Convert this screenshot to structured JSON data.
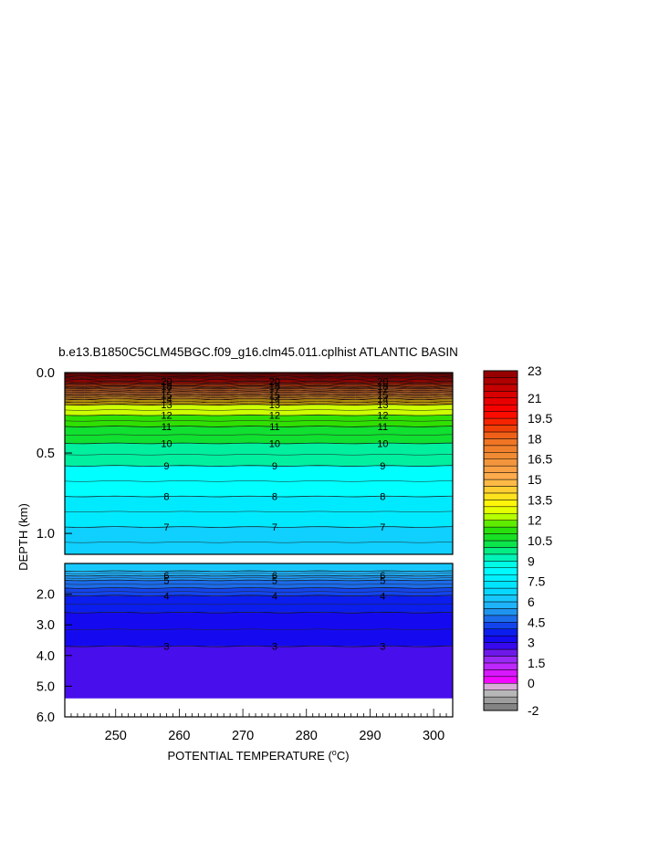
{
  "chart_data": {
    "type": "heatmap",
    "title": "b.e13.B1850C5CLM45BGC.f09_g16.clm45.011.cplhist ATLANTIC BASIN",
    "xlabel_prefix": "POTENTIAL TEMPERATURE (",
    "xlabel_unit_sup": "o",
    "xlabel_suffix": "C)",
    "ylabel": "DEPTH (km)",
    "xlim": [
      242,
      303
    ],
    "x_ticks": [
      250,
      260,
      270,
      280,
      290,
      300
    ],
    "upper_panel": {
      "ylim": [
        0.0,
        1.13
      ],
      "y_ticks": [
        "0.0",
        "0.5",
        "1.0"
      ],
      "y_tick_values": [
        0.0,
        0.5,
        1.0
      ],
      "isotherm_depths": [
        {
          "t": 23,
          "d": 0.01
        },
        {
          "t": 22,
          "d": 0.025
        },
        {
          "t": 21,
          "d": 0.04
        },
        {
          "t": 20,
          "d": 0.055
        },
        {
          "t": 19,
          "d": 0.07
        },
        {
          "t": 18,
          "d": 0.085
        },
        {
          "t": 17,
          "d": 0.1
        },
        {
          "t": 16,
          "d": 0.12
        },
        {
          "t": 15,
          "d": 0.14
        },
        {
          "t": 14,
          "d": 0.165
        },
        {
          "t": 13,
          "d": 0.2
        },
        {
          "t": 12,
          "d": 0.265
        },
        {
          "t": 11,
          "d": 0.335
        },
        {
          "t": 10,
          "d": 0.44
        },
        {
          "t": 9,
          "d": 0.58
        },
        {
          "t": 8,
          "d": 0.77
        },
        {
          "t": 7,
          "d": 0.96
        },
        {
          "t": 6,
          "d": 1.15
        }
      ],
      "contour_labels": [
        {
          "text": "20",
          "d": 0.055
        },
        {
          "text": "18",
          "d": 0.085
        },
        {
          "text": "17",
          "d": 0.1
        },
        {
          "text": "15",
          "d": 0.14
        },
        {
          "text": "14",
          "d": 0.165
        },
        {
          "text": "13",
          "d": 0.2
        },
        {
          "text": "12",
          "d": 0.265
        },
        {
          "text": "11",
          "d": 0.335
        },
        {
          "text": "10",
          "d": 0.44
        },
        {
          "text": "9",
          "d": 0.58
        },
        {
          "text": "8",
          "d": 0.77
        },
        {
          "text": "7",
          "d": 0.96
        }
      ]
    },
    "lower_panel": {
      "ylim": [
        1.0,
        6.0
      ],
      "y_ticks": [
        "2.0",
        "3.0",
        "4.0",
        "5.0",
        "6.0"
      ],
      "y_tick_values": [
        2.0,
        3.0,
        4.0,
        5.0,
        6.0
      ],
      "data_bottom_depth": 5.4,
      "isotherm_depths": [
        {
          "t": 6,
          "d": 1.25
        },
        {
          "t": 5.5,
          "d": 1.4
        },
        {
          "t": 5,
          "d": 1.55
        },
        {
          "t": 4.5,
          "d": 1.8
        },
        {
          "t": 4,
          "d": 2.05
        },
        {
          "t": 3.5,
          "d": 2.6
        },
        {
          "t": 3,
          "d": 3.7
        }
      ],
      "contour_labels": [
        {
          "text": "6",
          "d": 1.38
        },
        {
          "text": "5",
          "d": 1.55
        },
        {
          "text": "4",
          "d": 2.05
        },
        {
          "text": "3",
          "d": 3.7
        }
      ]
    },
    "label_columns_x": [
      258,
      275,
      292
    ],
    "colorbar": {
      "labels": [
        "23",
        "21",
        "19.5",
        "18",
        "16.5",
        "15",
        "13.5",
        "12",
        "10.5",
        "9",
        "7.5",
        "6",
        "4.5",
        "3",
        "1.5",
        "0",
        "-2"
      ],
      "label_values": [
        23,
        21,
        19.5,
        18,
        16.5,
        15,
        13.5,
        12,
        10.5,
        9,
        7.5,
        6,
        4.5,
        3,
        1.5,
        0,
        -2
      ],
      "levels": [
        -2,
        -1.5,
        -1,
        -0.5,
        0,
        0.5,
        1,
        1.5,
        2,
        2.5,
        3,
        3.5,
        4,
        4.5,
        5,
        5.5,
        6,
        6.5,
        7,
        7.5,
        8,
        8.5,
        9,
        9.5,
        10,
        10.5,
        11,
        11.5,
        12,
        12.5,
        13,
        13.5,
        14,
        14.5,
        15,
        15.5,
        16,
        16.5,
        17,
        17.5,
        18,
        18.5,
        19,
        19.5,
        20,
        20.5,
        21,
        21.5,
        22,
        22.5,
        23
      ]
    },
    "palette": [
      {
        "v": -2,
        "c": "#777777"
      },
      {
        "v": -1,
        "c": "#aaaaaa"
      },
      {
        "v": -0.3,
        "c": "#cfcfcf"
      },
      {
        "v": 0,
        "c": "#ff00ff"
      },
      {
        "v": 1.5,
        "c": "#b030ff"
      },
      {
        "v": 2.3,
        "c": "#6a18e8"
      },
      {
        "v": 3,
        "c": "#1a00f0"
      },
      {
        "v": 3.8,
        "c": "#0a20ee"
      },
      {
        "v": 4.6,
        "c": "#1a60e8"
      },
      {
        "v": 5.4,
        "c": "#20a0f0"
      },
      {
        "v": 6,
        "c": "#1ec0ff"
      },
      {
        "v": 7,
        "c": "#00e0ff"
      },
      {
        "v": 8.5,
        "c": "#00ffff"
      },
      {
        "v": 9.5,
        "c": "#00f0a0"
      },
      {
        "v": 10.5,
        "c": "#10e030"
      },
      {
        "v": 11.5,
        "c": "#30e000"
      },
      {
        "v": 12.2,
        "c": "#b0ff00"
      },
      {
        "v": 13,
        "c": "#ffff00"
      },
      {
        "v": 14,
        "c": "#ffd828"
      },
      {
        "v": 15,
        "c": "#ffb050"
      },
      {
        "v": 16.5,
        "c": "#f09038"
      },
      {
        "v": 18,
        "c": "#f07020"
      },
      {
        "v": 19,
        "c": "#f03000"
      },
      {
        "v": 20,
        "c": "#ff0000"
      },
      {
        "v": 21.5,
        "c": "#d00000"
      },
      {
        "v": 23,
        "c": "#8c0000"
      }
    ]
  }
}
